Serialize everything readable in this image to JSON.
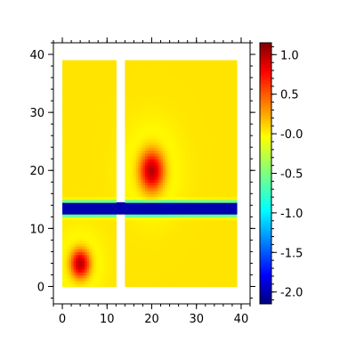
{
  "chart_data": {
    "type": "heatmap",
    "title": "",
    "xlabel": "",
    "ylabel": "",
    "xlim": [
      -2,
      42
    ],
    "ylim": [
      -3,
      42
    ],
    "xticks": [
      0,
      10,
      20,
      30,
      40
    ],
    "yticks": [
      0,
      10,
      20,
      30,
      40
    ],
    "xtick_labels": [
      "0",
      "10",
      "20",
      "30",
      "40"
    ],
    "ytick_labels": [
      "0",
      "10",
      "20",
      "30",
      "40"
    ],
    "colormap": "jet",
    "colorbar": {
      "range": [
        -2.15,
        1.15
      ],
      "ticks": [
        1.0,
        0.5,
        0.0,
        -0.5,
        -1.0,
        -1.5,
        -2.0
      ],
      "tick_labels": [
        "1.0",
        "0.5",
        "-0.0",
        "-0.5",
        "-1.0",
        "-1.5",
        "-2.0"
      ]
    },
    "grid": false,
    "domain": {
      "x": [
        0,
        39
      ],
      "y": [
        0,
        39
      ],
      "gaps": [
        {
          "x": [
            12,
            14
          ],
          "y": [
            0,
            39
          ]
        }
      ]
    },
    "features": [
      {
        "kind": "peak",
        "center": [
          20,
          20
        ],
        "value": 1.0,
        "radii": [
          3.5,
          4.5
        ]
      },
      {
        "kind": "peak",
        "center": [
          4,
          4
        ],
        "value": 1.0,
        "radii": [
          2.8,
          3.2
        ]
      },
      {
        "kind": "band",
        "y_center": 13.5,
        "half_width": 0.9,
        "value": -2.0
      }
    ],
    "background_value": 0.0
  }
}
